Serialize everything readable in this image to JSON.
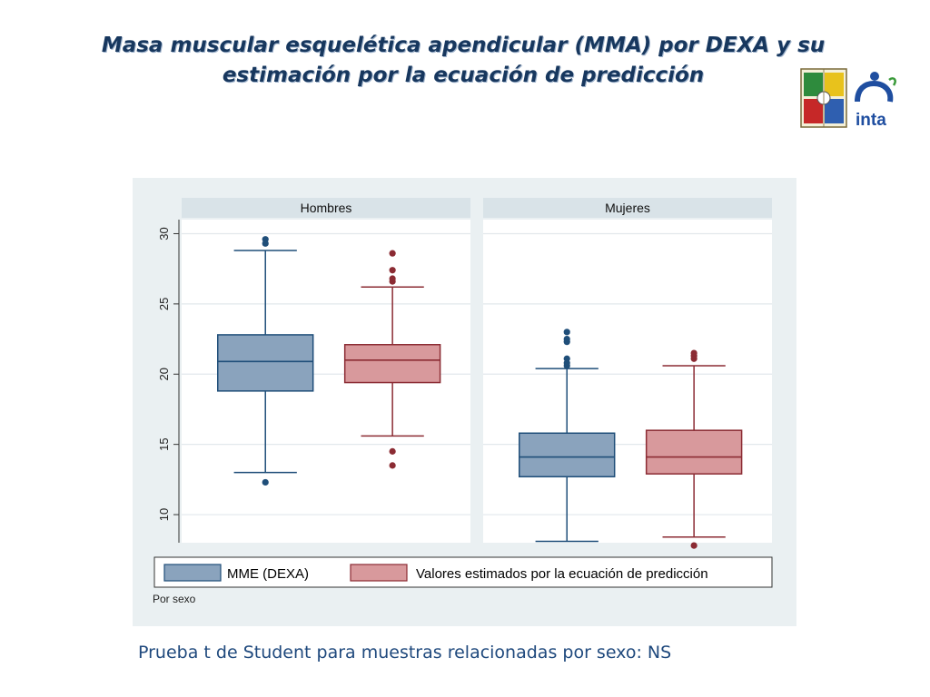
{
  "slide": {
    "title_line1": "Masa muscular esquelética apendicular  (MMA) por DEXA y su",
    "title_line2": "estimación por la ecuación de predicción",
    "footnote": "Prueba t de Student para muestras relacionadas por sexo: NS",
    "logo_text": "inta"
  },
  "colors": {
    "dexa_fill": "#8aa3bd",
    "dexa_line": "#1f4e79",
    "pred_fill": "#d8999c",
    "pred_line": "#8b2b33",
    "panel_bg": "#eaf0f2",
    "panel_header": "#d9e3e8",
    "title": "#17375e"
  },
  "chart_data": {
    "type": "box",
    "by_label": "Por sexo",
    "ylim": [
      8,
      31
    ],
    "yticks": [
      10,
      15,
      20,
      25,
      30
    ],
    "grid": true,
    "legend_position": "bottom",
    "series": [
      {
        "key": "dexa",
        "name": "MME (DEXA)"
      },
      {
        "key": "pred",
        "name": "Valores estimados por la ecuación de predicción"
      }
    ],
    "panels": [
      {
        "title": "Hombres",
        "boxes": [
          {
            "series": "dexa",
            "whisker_low": 13.0,
            "q1": 18.8,
            "median": 20.9,
            "q3": 22.8,
            "whisker_high": 28.8,
            "outliers": [
              12.3,
              29.3,
              29.6
            ]
          },
          {
            "series": "pred",
            "whisker_low": 15.6,
            "q1": 19.4,
            "median": 21.0,
            "q3": 22.1,
            "whisker_high": 26.2,
            "outliers": [
              13.5,
              14.5,
              26.6,
              26.8,
              27.4,
              28.6
            ]
          }
        ]
      },
      {
        "title": "Mujeres",
        "boxes": [
          {
            "series": "dexa",
            "whisker_low": 8.1,
            "q1": 12.7,
            "median": 14.1,
            "q3": 15.8,
            "whisker_high": 20.4,
            "outliers": [
              20.6,
              20.8,
              21.1,
              22.3,
              22.5,
              23.0
            ]
          },
          {
            "series": "pred",
            "whisker_low": 8.4,
            "q1": 12.9,
            "median": 14.1,
            "q3": 16.0,
            "whisker_high": 20.6,
            "outliers": [
              7.8,
              21.1,
              21.3,
              21.5
            ]
          }
        ]
      }
    ]
  }
}
